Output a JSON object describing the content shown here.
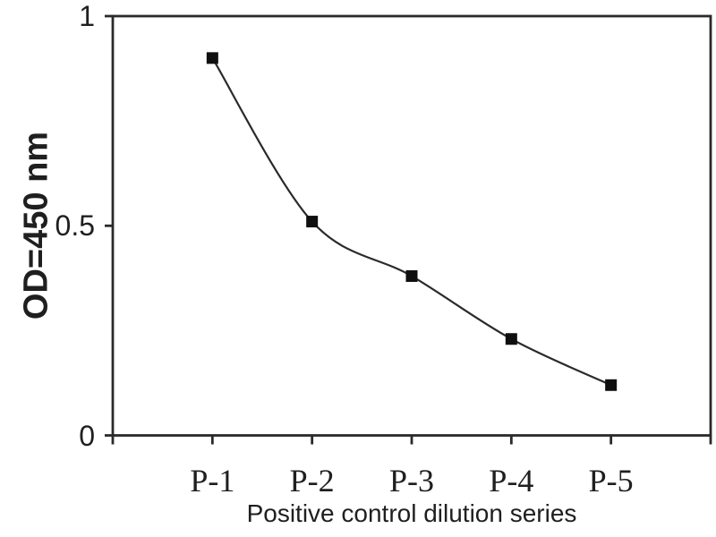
{
  "chart_data": {
    "type": "line",
    "categories": [
      "P-1",
      "P-2",
      "P-3",
      "P-4",
      "P-5"
    ],
    "series": [
      {
        "name": "Positive control",
        "values": [
          0.9,
          0.51,
          0.38,
          0.23,
          0.12
        ]
      }
    ],
    "xlabel": "Positive control dilution series",
    "ylabel": "OD=450 nm",
    "ylim": [
      0,
      1
    ],
    "yticks": [
      {
        "value": 0,
        "label": "0"
      },
      {
        "value": 0.5,
        "label": "0.5"
      },
      {
        "value": 1,
        "label": "1"
      }
    ],
    "x_tick_count": 7,
    "grid": false,
    "legend": "none",
    "line_smooth": true,
    "marker": "filled-square",
    "colors": {
      "line": "#2a2a2a",
      "marker": "#0f0f0f",
      "axis": "#2a2a2a",
      "text": "#1f1f1f",
      "background": "#ffffff"
    }
  }
}
